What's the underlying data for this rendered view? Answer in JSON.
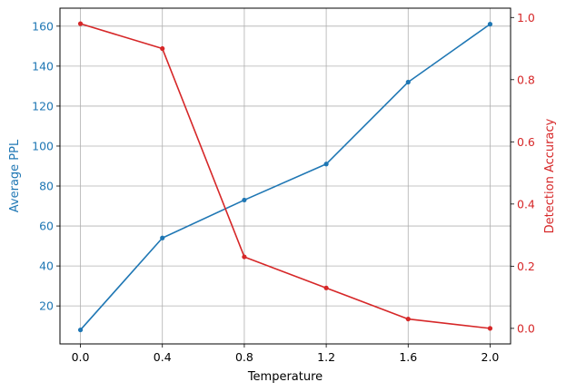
{
  "chart_data": {
    "type": "line",
    "title": "",
    "xlabel": "Temperature",
    "x": [
      0.0,
      0.4,
      0.8,
      1.2,
      1.6,
      2.0
    ],
    "xlim": [
      -0.1,
      2.1
    ],
    "xticks": [
      "0.0",
      "0.4",
      "0.8",
      "1.2",
      "1.6",
      "2.0"
    ],
    "grid": true,
    "series": [
      {
        "axis": "left",
        "ylabel": "Average PPL",
        "color": "#1f77b4",
        "values": [
          8,
          54,
          73,
          91,
          132,
          161
        ],
        "ylim": [
          1,
          169
        ],
        "yticks": [
          "20",
          "40",
          "60",
          "80",
          "100",
          "120",
          "140",
          "160"
        ]
      },
      {
        "axis": "right",
        "ylabel": "Detection Accuracy",
        "color": "#d62728",
        "values": [
          0.98,
          0.9,
          0.23,
          0.13,
          0.03,
          0.0
        ],
        "ylim": [
          -0.05,
          1.03
        ],
        "yticks": [
          "0.0",
          "0.2",
          "0.4",
          "0.6",
          "0.8",
          "1.0"
        ]
      }
    ]
  }
}
